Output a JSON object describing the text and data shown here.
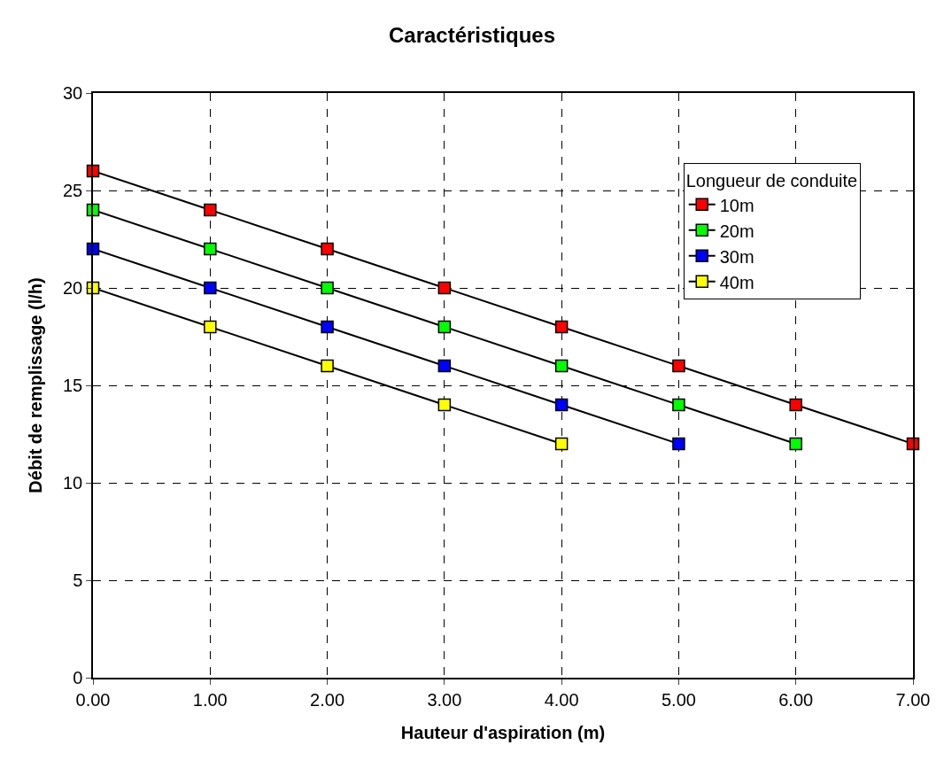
{
  "chart_data": {
    "type": "line",
    "title": "Caractéristiques",
    "xlabel": "Hauteur d'aspiration (m)",
    "ylabel": "Débit de remplissage (l/h)",
    "legend_title": "Longueur de conduite",
    "x": [
      0,
      1,
      2,
      3,
      4,
      5,
      6,
      7
    ],
    "series": [
      {
        "name": "10m",
        "color": "#ff0000",
        "values": [
          26,
          24,
          22,
          20,
          18,
          16,
          14,
          12
        ]
      },
      {
        "name": "20m",
        "color": "#00ff00",
        "values": [
          24,
          22,
          20,
          18,
          16,
          14,
          12,
          null
        ]
      },
      {
        "name": "30m",
        "color": "#0000ff",
        "values": [
          22,
          20,
          18,
          16,
          14,
          12,
          null,
          null
        ]
      },
      {
        "name": "40m",
        "color": "#ffff00",
        "values": [
          20,
          18,
          16,
          14,
          12,
          null,
          null,
          null
        ]
      }
    ],
    "xlim": [
      0,
      7
    ],
    "xticks": [
      {
        "value": 0,
        "label": "0.00"
      },
      {
        "value": 1,
        "label": "1.00"
      },
      {
        "value": 2,
        "label": "2.00"
      },
      {
        "value": 3,
        "label": "3.00"
      },
      {
        "value": 4,
        "label": "4.00"
      },
      {
        "value": 5,
        "label": "5.00"
      },
      {
        "value": 6,
        "label": "6.00"
      },
      {
        "value": 7,
        "label": "7.00"
      }
    ],
    "ylim": [
      0,
      30
    ],
    "yticks": [
      0,
      5,
      10,
      15,
      20,
      25,
      30
    ],
    "grid": true,
    "legend": "top right",
    "marker": "square",
    "line_style": "solid"
  }
}
